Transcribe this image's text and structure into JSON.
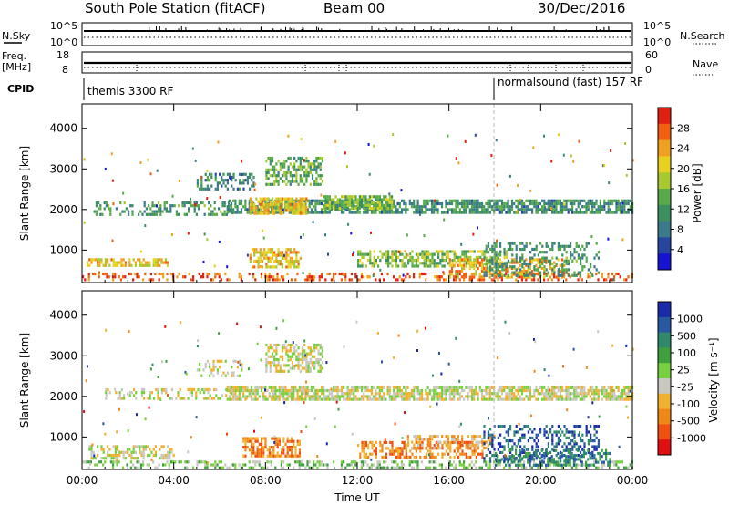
{
  "header": {
    "station": "South Pole Station (fitACF)",
    "beam": "Beam 00",
    "date": "30/Dec/2016"
  },
  "top_panels": {
    "nsky_label": "N.Sky",
    "nsky_tick_top": "10^5",
    "nsky_tick_bottom": "10^0",
    "nsearch_label": "N.Search",
    "nsearch_tick_top": "10^5",
    "nsearch_tick_bottom": "10^0",
    "freq_label_line1": "Freq.",
    "freq_label_line2": "[MHz]",
    "freq_tick_top": "18",
    "freq_tick_bottom": "8",
    "nave_label": "Nave",
    "nave_tick_top": "60",
    "nave_tick_bottom": "0",
    "cpid_label": "CPID",
    "cpid_1": "themis 3300 RF",
    "cpid_2": "normalsound (fast) 157 RF"
  },
  "colors": {
    "power_scale": [
      "#1414d2",
      "#2646a0",
      "#3a7a8a",
      "#3c9060",
      "#58aa48",
      "#a8c830",
      "#e8d020",
      "#f0a020",
      "#f06010",
      "#e02010"
    ],
    "velocity_scale": [
      "#1a2aa8",
      "#2858a0",
      "#2e8a6a",
      "#40a040",
      "#78d040",
      "#c8c8c0",
      "#f0b030",
      "#f08818",
      "#f05010",
      "#e01010"
    ]
  },
  "chart_data": [
    {
      "type": "heatmap",
      "name": "power",
      "ylabel": "Slant Range [km]",
      "ylim": [
        200,
        4600
      ],
      "yticks": [
        1000,
        2000,
        3000,
        4000
      ],
      "xlim_hours": [
        0,
        24
      ],
      "xticks": [
        "00:00",
        "04:00",
        "08:00",
        "12:00",
        "16:00",
        "20:00",
        "00:00"
      ],
      "colorbar": {
        "label": "Power [dB]",
        "range": [
          0,
          32
        ],
        "ticks": [
          "4",
          "8",
          "12",
          "16",
          "20",
          "24",
          "28"
        ]
      },
      "bands": [
        {
          "t0": 0.0,
          "t1": 24.0,
          "r0": 300,
          "r1": 450,
          "level": 26,
          "density": 0.35
        },
        {
          "t0": 0.2,
          "t1": 3.8,
          "r0": 600,
          "r1": 800,
          "level": 20,
          "density": 0.6
        },
        {
          "t0": 0.5,
          "t1": 6.5,
          "r0": 1900,
          "r1": 2200,
          "level": 10,
          "density": 0.35
        },
        {
          "t0": 6.3,
          "t1": 24.0,
          "r0": 1950,
          "r1": 2250,
          "level": 9,
          "density": 0.75
        },
        {
          "t0": 7.3,
          "t1": 9.8,
          "r0": 1900,
          "r1": 2300,
          "level": 20,
          "density": 0.8
        },
        {
          "t0": 10.5,
          "t1": 13.5,
          "r0": 2000,
          "r1": 2350,
          "level": 14,
          "density": 0.75
        },
        {
          "t0": 5.0,
          "t1": 7.5,
          "r0": 2500,
          "r1": 2900,
          "level": 8,
          "density": 0.4
        },
        {
          "t0": 8.0,
          "t1": 10.5,
          "r0": 2600,
          "r1": 3300,
          "level": 12,
          "density": 0.55
        },
        {
          "t0": 7.3,
          "t1": 9.5,
          "r0": 600,
          "r1": 1050,
          "level": 20,
          "density": 0.65
        },
        {
          "t0": 12.0,
          "t1": 18.5,
          "r0": 600,
          "r1": 1000,
          "level": 14,
          "density": 0.55
        },
        {
          "t0": 16.0,
          "t1": 21.0,
          "r0": 300,
          "r1": 800,
          "level": 22,
          "density": 0.5
        },
        {
          "t0": 17.5,
          "t1": 22.5,
          "r0": 400,
          "r1": 1200,
          "level": 10,
          "density": 0.35
        }
      ]
    },
    {
      "type": "heatmap",
      "name": "velocity",
      "ylabel": "Slant Range [km]",
      "xlabel": "Time UT",
      "ylim": [
        200,
        4600
      ],
      "yticks": [
        1000,
        2000,
        3000,
        4000
      ],
      "xlim_hours": [
        0,
        24
      ],
      "xticks": [
        "00:00",
        "04:00",
        "08:00",
        "12:00",
        "16:00",
        "20:00",
        "00:00"
      ],
      "colorbar": {
        "label": "Velocity [m s⁻¹]",
        "ticks": [
          "1000",
          "500",
          "100",
          "25",
          "-25",
          "-100",
          "-500",
          "-1000"
        ]
      },
      "bands": [
        {
          "t0": 0.0,
          "t1": 24.0,
          "r0": 250,
          "r1": 420,
          "level": 4,
          "density": 0.4
        },
        {
          "t0": 0.2,
          "t1": 4.0,
          "r0": 500,
          "r1": 800,
          "level": 5,
          "density": 0.5
        },
        {
          "t0": 1.0,
          "t1": 6.5,
          "r0": 1950,
          "r1": 2200,
          "level": 5,
          "density": 0.35
        },
        {
          "t0": 6.3,
          "t1": 24.0,
          "r0": 1950,
          "r1": 2250,
          "level": 5,
          "density": 0.75
        },
        {
          "t0": 8.0,
          "t1": 10.5,
          "r0": 2600,
          "r1": 3300,
          "level": 5,
          "density": 0.55
        },
        {
          "t0": 5.0,
          "t1": 7.0,
          "r0": 2500,
          "r1": 2900,
          "level": 5,
          "density": 0.35
        },
        {
          "t0": 7.0,
          "t1": 9.5,
          "r0": 500,
          "r1": 1000,
          "level": 7,
          "density": 0.6
        },
        {
          "t0": 12.0,
          "t1": 17.5,
          "r0": 500,
          "r1": 900,
          "level": 7,
          "density": 0.55
        },
        {
          "t0": 14.0,
          "t1": 18.0,
          "r0": 700,
          "r1": 1050,
          "level": 6,
          "density": 0.4
        },
        {
          "t0": 17.5,
          "t1": 22.5,
          "r0": 400,
          "r1": 1300,
          "level": 1,
          "density": 0.35
        },
        {
          "t0": 18.0,
          "t1": 23.0,
          "r0": 300,
          "r1": 700,
          "level": 2,
          "density": 0.45
        }
      ]
    }
  ]
}
